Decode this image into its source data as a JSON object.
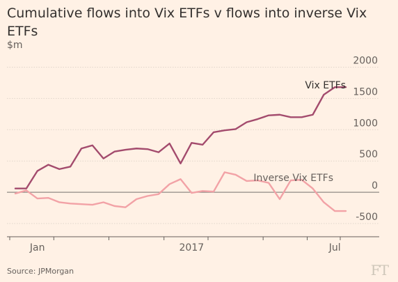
{
  "title": "Cumulative flows into Vix ETFs v flows into inverse Vix ETFs",
  "unit": "$m",
  "source": "Source: JPMorgan",
  "logo_text": "FT",
  "chart_data": {
    "type": "line",
    "ylim": [
      -600,
      2050
    ],
    "yticks": [
      -500,
      0,
      500,
      1000,
      1500,
      2000
    ],
    "ytick_labels": [
      "-500",
      "0",
      "500",
      "1000",
      "1500",
      "2000"
    ],
    "xlim": [
      0,
      30
    ],
    "xticks": [
      2,
      16,
      29
    ],
    "xtick_labels": [
      "Jan",
      "2017",
      "Jul"
    ],
    "grid": true,
    "series": [
      {
        "name": "Vix ETFs",
        "color": "#a34b6d",
        "x": [
          0,
          1,
          2,
          3,
          4,
          5,
          6,
          7,
          8,
          9,
          10,
          11,
          12,
          13,
          14,
          15,
          16,
          17,
          18,
          19,
          20,
          21,
          22,
          23,
          24,
          25,
          26,
          27,
          28,
          29,
          30
        ],
        "values": [
          60,
          60,
          340,
          440,
          370,
          410,
          700,
          750,
          540,
          650,
          680,
          700,
          690,
          640,
          780,
          460,
          790,
          760,
          960,
          990,
          1010,
          1120,
          1170,
          1230,
          1240,
          1200,
          1200,
          1240,
          1560,
          1680,
          1680
        ]
      },
      {
        "name": "Inverse Vix ETFs",
        "color": "#f2a2a6",
        "x": [
          0,
          1,
          2,
          3,
          4,
          5,
          6,
          7,
          8,
          9,
          10,
          11,
          12,
          13,
          14,
          15,
          16,
          17,
          18,
          19,
          20,
          21,
          22,
          23,
          24,
          25,
          26,
          27,
          28,
          29,
          30
        ],
        "values": [
          -20,
          30,
          -100,
          -90,
          -160,
          -180,
          -190,
          -200,
          -160,
          -220,
          -240,
          -110,
          -60,
          -30,
          130,
          210,
          -10,
          20,
          10,
          320,
          280,
          180,
          190,
          150,
          -110,
          190,
          200,
          60,
          -160,
          -300,
          -300
        ]
      }
    ]
  }
}
